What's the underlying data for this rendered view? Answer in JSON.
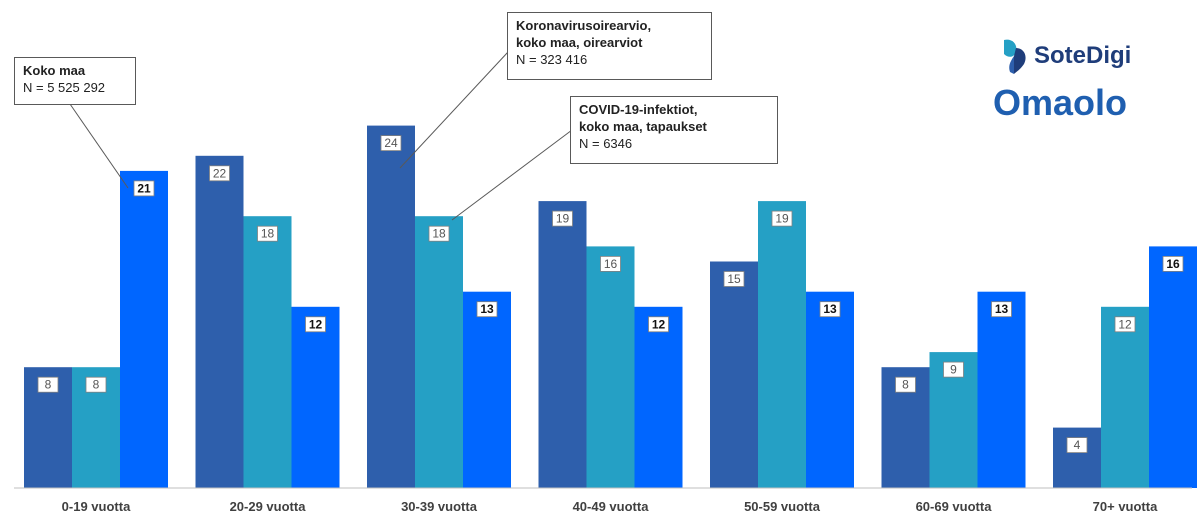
{
  "chart_data": {
    "type": "bar",
    "categories": [
      "0-19 vuotta",
      "20-29 vuotta",
      "30-39 vuotta",
      "40-49 vuotta",
      "50-59 vuotta",
      "60-69 vuotta",
      "70+ vuotta"
    ],
    "series": [
      {
        "values": [
          8,
          22,
          24,
          19,
          15,
          8,
          4
        ],
        "color": "#2e5fac"
      },
      {
        "values": [
          8,
          18,
          18,
          16,
          19,
          9,
          12
        ],
        "color": "#25a0c5"
      },
      {
        "values": [
          21,
          12,
          13,
          12,
          13,
          13,
          16
        ],
        "color": "#0066ff"
      }
    ],
    "ylim": [
      0,
      26
    ],
    "grid": false,
    "legend": "callouts"
  },
  "callouts": {
    "koko_maa": {
      "title": "Koko maa",
      "n": "N = 5 525 292"
    },
    "korona": {
      "title": "Koronavirusoirearvio,\nkoko maa, oirearviot",
      "n": "N = 323 416"
    },
    "covid": {
      "title": "COVID-19-infektiot,\nkoko maa, tapaukset",
      "n": "N = 6346"
    }
  },
  "branding": {
    "sotedigi": "SoteDigi",
    "omaolo": "Omaolo",
    "sotedigi_color": "#1f3d7a",
    "omaolo_color": "#1f5fb0"
  }
}
